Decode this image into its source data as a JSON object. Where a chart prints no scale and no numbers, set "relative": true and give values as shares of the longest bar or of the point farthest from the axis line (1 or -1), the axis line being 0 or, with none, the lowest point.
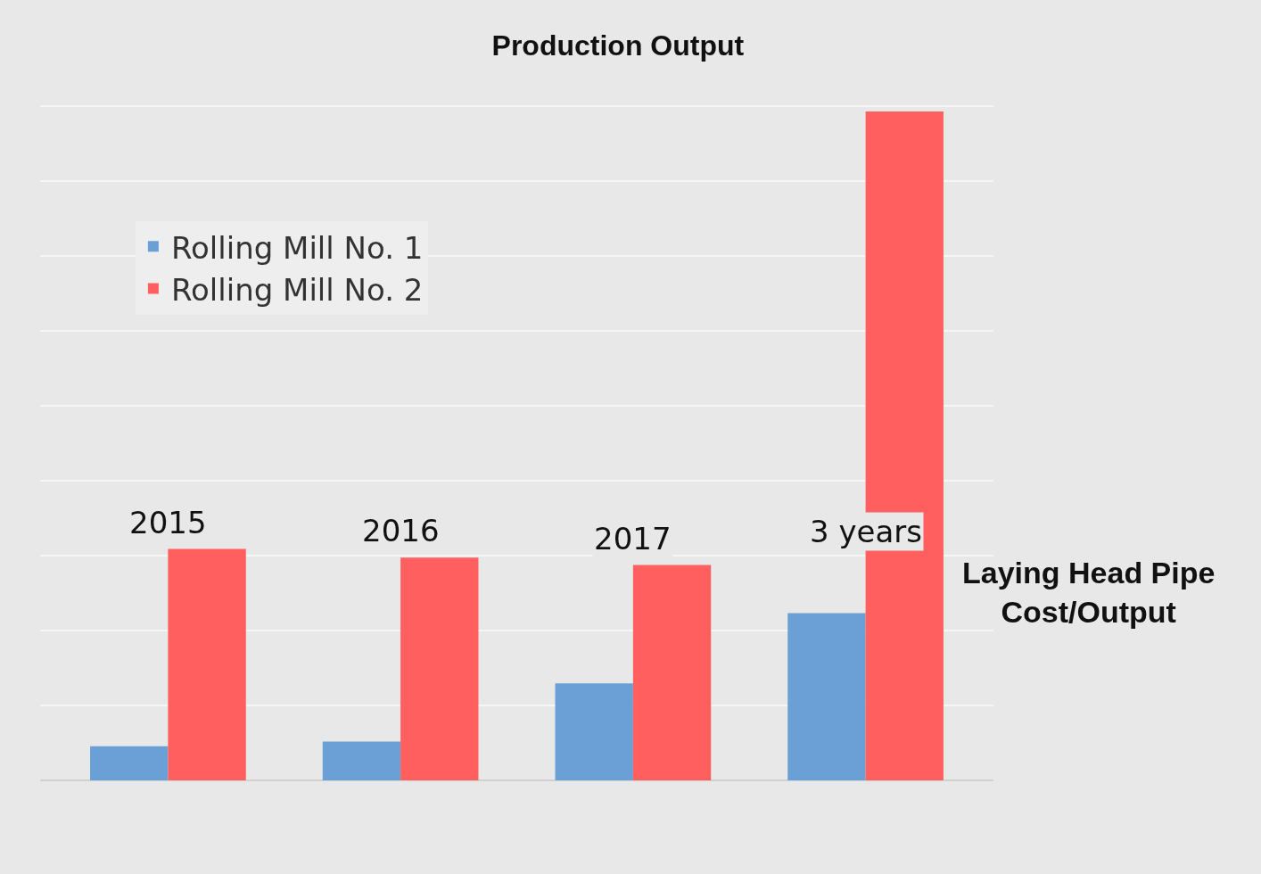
{
  "chart_data": {
    "type": "bar",
    "title": "Production Output",
    "relative": true,
    "grid": "y",
    "legend": "top left",
    "categories": [
      "2015",
      "2016",
      "2017",
      "3 years"
    ],
    "series": [
      {
        "name": "Rolling Mill No. 1",
        "color": "#6aa0d6",
        "values": [
          0.051,
          0.058,
          0.145,
          0.25
        ]
      },
      {
        "name": "Rolling Mill No. 2",
        "color": "#ff5f5f",
        "values": [
          0.346,
          0.333,
          0.322,
          1
        ]
      }
    ],
    "annotations": [
      "Laying Head Pipe\nCost/Output"
    ]
  }
}
